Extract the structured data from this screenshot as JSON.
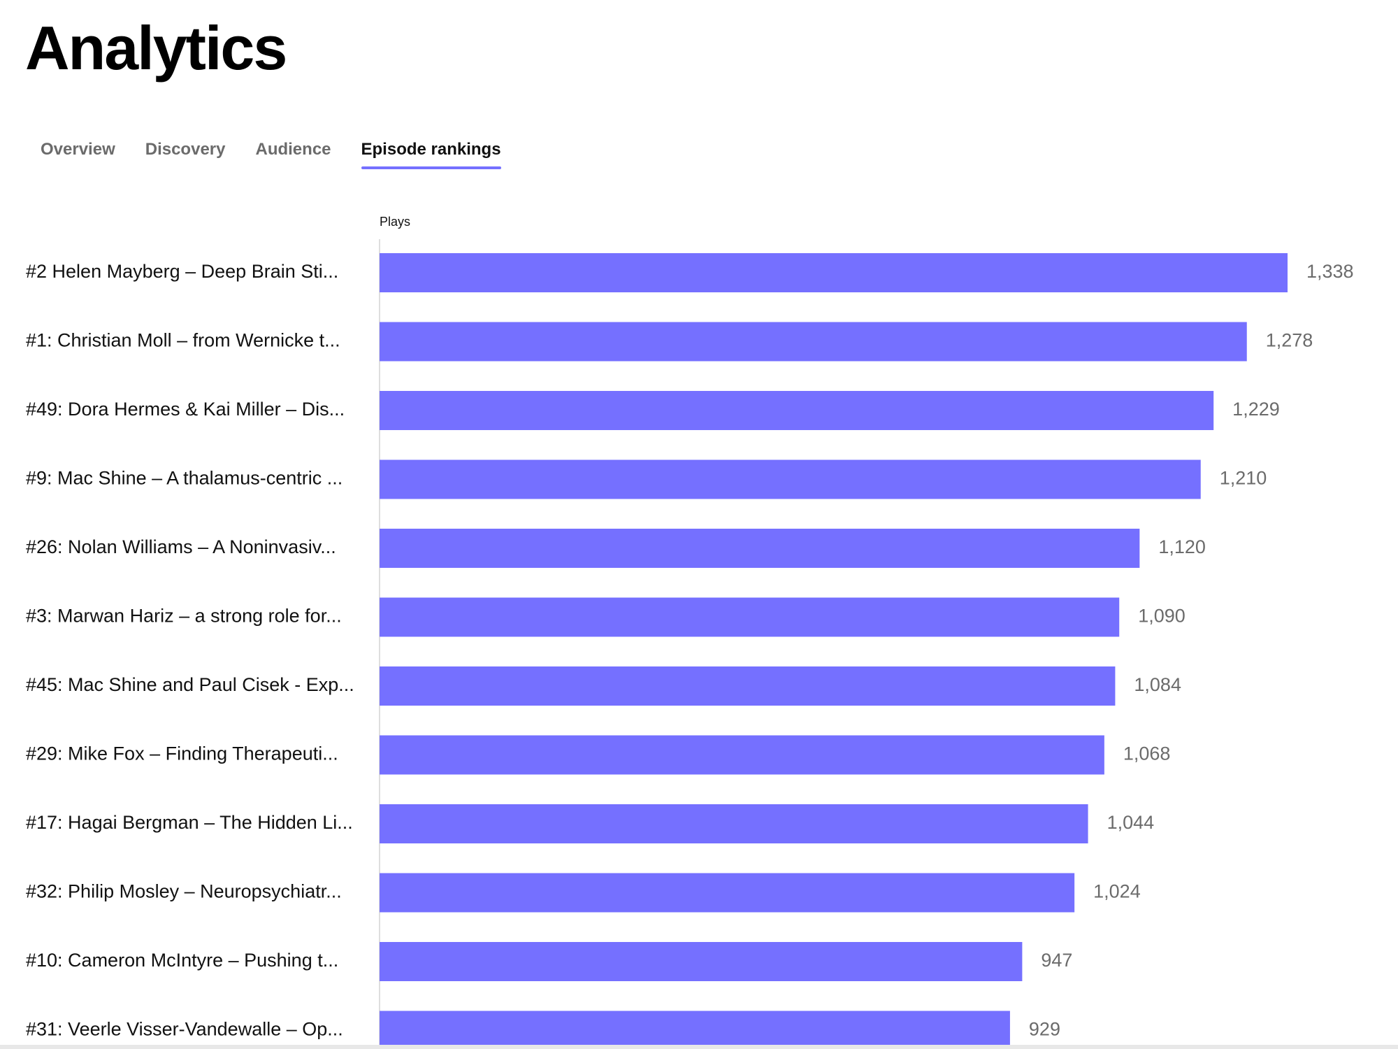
{
  "page": {
    "title": "Analytics"
  },
  "tabs": [
    {
      "label": "Overview",
      "active": false
    },
    {
      "label": "Discovery",
      "active": false
    },
    {
      "label": "Audience",
      "active": false
    },
    {
      "label": "Episode rankings",
      "active": true
    }
  ],
  "colors": {
    "accent": "#7570ff",
    "bar": "#7570ff"
  },
  "chart_data": {
    "type": "bar",
    "orientation": "horizontal",
    "xlabel": "Plays",
    "xlim": [
      0,
      1338
    ],
    "categories": [
      "#2 Helen Mayberg – Deep Brain Sti...",
      "#1: Christian Moll – from Wernicke t...",
      "#49: Dora Hermes & Kai Miller – Dis...",
      "#9: Mac Shine – A thalamus-centric ...",
      "#26: Nolan Williams – A Noninvasiv...",
      "#3: Marwan Hariz – a strong role for...",
      "#45: Mac Shine and Paul Cisek - Exp...",
      "#29: Mike Fox – Finding Therapeuti...",
      "#17: Hagai Bergman – The Hidden Li...",
      "#32: Philip Mosley – Neuropsychiatr...",
      "#10: Cameron McIntyre – Pushing t...",
      "#31: Veerle Visser-Vandewalle – Op..."
    ],
    "values": [
      1338,
      1278,
      1229,
      1210,
      1120,
      1090,
      1084,
      1068,
      1044,
      1024,
      947,
      929
    ],
    "value_labels": [
      "1,338",
      "1,278",
      "1,229",
      "1,210",
      "1,120",
      "1,090",
      "1,084",
      "1,068",
      "1,044",
      "1,024",
      "947",
      "929"
    ]
  }
}
